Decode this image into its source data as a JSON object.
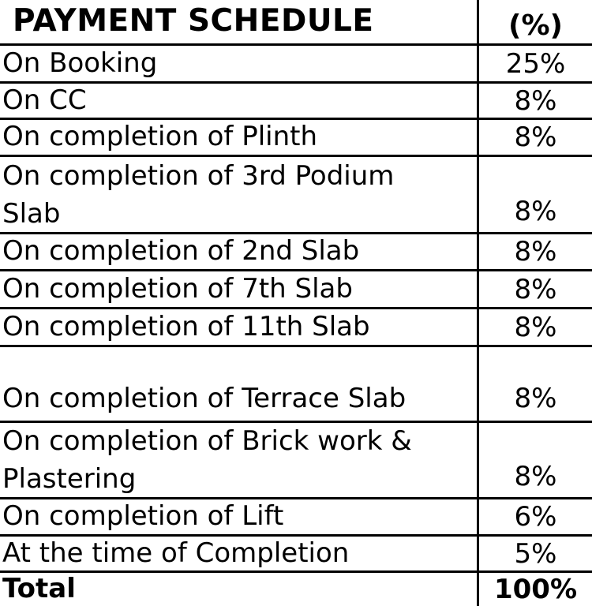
{
  "table": {
    "title": "PAYMENT SCHEDULE",
    "percent_header": "(%)",
    "rows": [
      {
        "label": "On Booking",
        "value": "25%"
      },
      {
        "label": "On CC",
        "value": "8%"
      },
      {
        "label": "On completion of Plinth",
        "value": "8%"
      },
      {
        "label": "On completion of 3rd Podium Slab",
        "value": "8%"
      },
      {
        "label": "On completion of 2nd Slab",
        "value": "8%"
      },
      {
        "label": "On completion of 7th Slab",
        "value": "8%"
      },
      {
        "label": "On completion of 11th Slab",
        "value": "8%"
      },
      {
        "label": "On completion of Terrace Slab",
        "value": "8%"
      },
      {
        "label": "On completion of Brick work & Plastering",
        "value": "8%"
      },
      {
        "label": "On completion of Lift",
        "value": "6%"
      },
      {
        "label": "At the time of Completion",
        "value": "5%"
      },
      {
        "label": "Total",
        "value": "100%"
      }
    ],
    "colors": {
      "border": "#000000",
      "background": "#ffffff",
      "text": "#000000"
    }
  }
}
